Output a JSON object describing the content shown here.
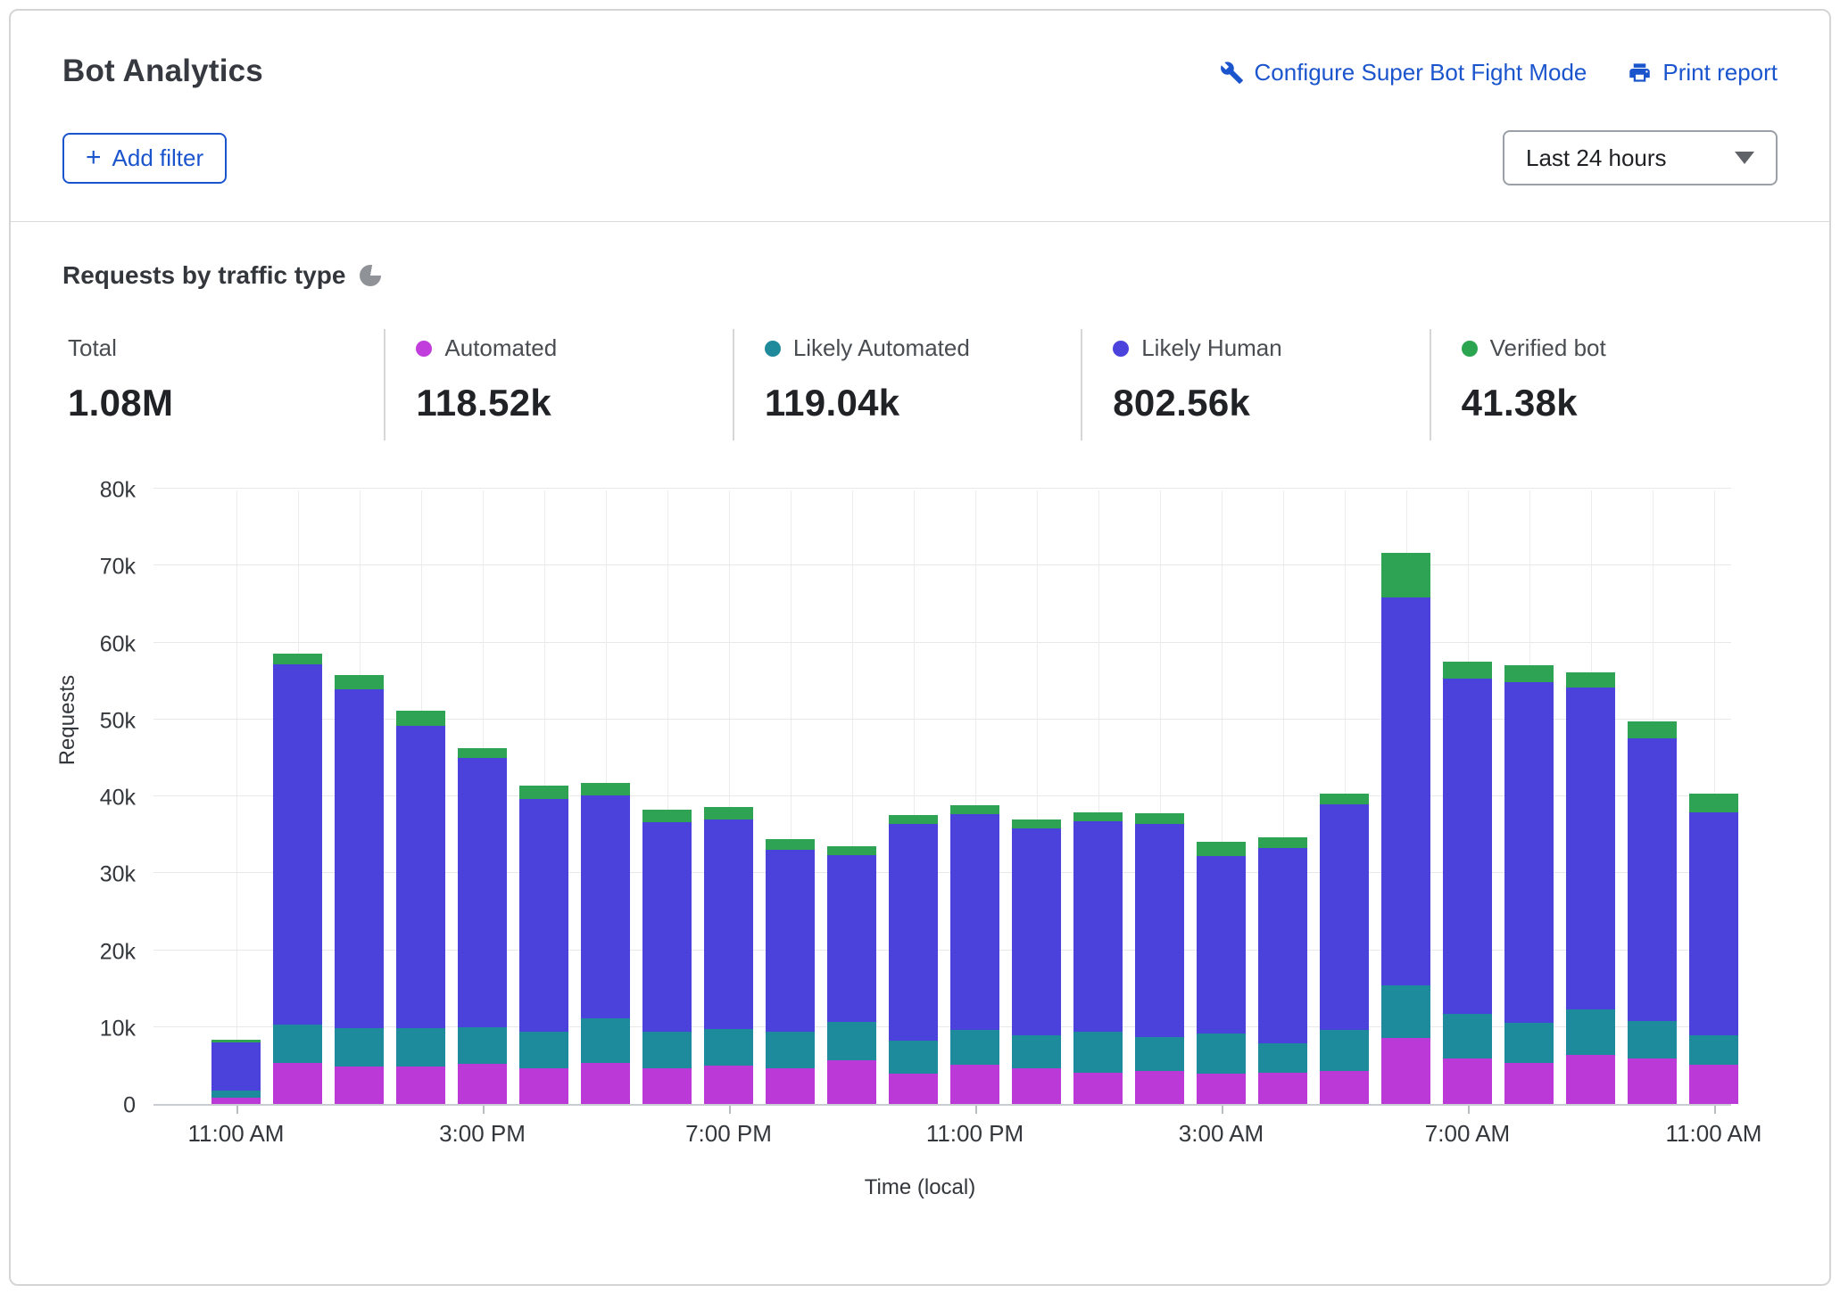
{
  "header": {
    "title": "Bot Analytics",
    "configure_link": "Configure Super Bot Fight Mode",
    "print_link": "Print report",
    "add_filter_label": "Add filter",
    "time_range_value": "Last 24 hours"
  },
  "section": {
    "title": "Requests by traffic type"
  },
  "stats": [
    {
      "label": "Total",
      "value": "1.08M",
      "dot_color": null
    },
    {
      "label": "Automated",
      "value": "118.52k",
      "dot_color": "#c13edd"
    },
    {
      "label": "Likely Automated",
      "value": "119.04k",
      "dot_color": "#1f8a9c"
    },
    {
      "label": "Likely Human",
      "value": "802.56k",
      "dot_color": "#4b43dc"
    },
    {
      "label": "Verified bot",
      "value": "41.38k",
      "dot_color": "#2ca551"
    }
  ],
  "chart_data": {
    "type": "bar",
    "stacked": true,
    "title": "Requests by traffic type",
    "xlabel": "Time (local)",
    "ylabel": "Requests",
    "unit": "thousands of requests per hour",
    "ylim": [
      0,
      80000
    ],
    "grid": true,
    "y_tick_labels": [
      "0",
      "10k",
      "20k",
      "30k",
      "40k",
      "50k",
      "60k",
      "70k",
      "80k"
    ],
    "x_tick_labels": [
      "11:00 AM",
      "3:00 PM",
      "7:00 PM",
      "11:00 PM",
      "3:00 AM",
      "7:00 AM",
      "11:00 AM"
    ],
    "x_tick_indices": [
      0,
      4,
      8,
      12,
      16,
      20,
      24
    ],
    "series": [
      {
        "name": "Automated",
        "color": "#bb3ad7",
        "values": [
          0.8,
          5.3,
          4.9,
          4.9,
          5.2,
          4.7,
          5.3,
          4.7,
          5.0,
          4.6,
          5.7,
          4.0,
          5.1,
          4.6,
          4.1,
          4.3,
          4.0,
          4.1,
          4.3,
          8.6,
          5.9,
          5.3,
          6.4,
          5.9,
          5.1
        ]
      },
      {
        "name": "Likely Automated",
        "color": "#1e8b9d",
        "values": [
          0.9,
          5.0,
          5.0,
          4.9,
          4.8,
          4.7,
          5.8,
          4.7,
          4.7,
          4.8,
          5.0,
          4.2,
          4.5,
          4.3,
          5.3,
          4.4,
          5.2,
          3.8,
          5.3,
          6.8,
          5.8,
          5.2,
          5.9,
          4.9,
          3.8
        ]
      },
      {
        "name": "Likely Human",
        "color": "#4a42da",
        "values": [
          6.3,
          46.9,
          44.0,
          39.4,
          35.0,
          30.3,
          29.0,
          27.3,
          27.3,
          23.6,
          21.7,
          28.2,
          28.1,
          26.9,
          27.3,
          27.7,
          23.0,
          25.4,
          29.4,
          50.5,
          43.6,
          44.3,
          41.9,
          36.7,
          29.0
        ]
      },
      {
        "name": "Verified bot",
        "color": "#2ea353",
        "values": [
          0.3,
          1.4,
          1.9,
          1.9,
          1.3,
          1.7,
          1.7,
          1.6,
          1.6,
          1.4,
          1.1,
          1.2,
          1.2,
          1.2,
          1.2,
          1.4,
          1.9,
          1.4,
          1.3,
          5.7,
          2.2,
          2.2,
          1.9,
          2.2,
          2.4
        ]
      }
    ]
  }
}
